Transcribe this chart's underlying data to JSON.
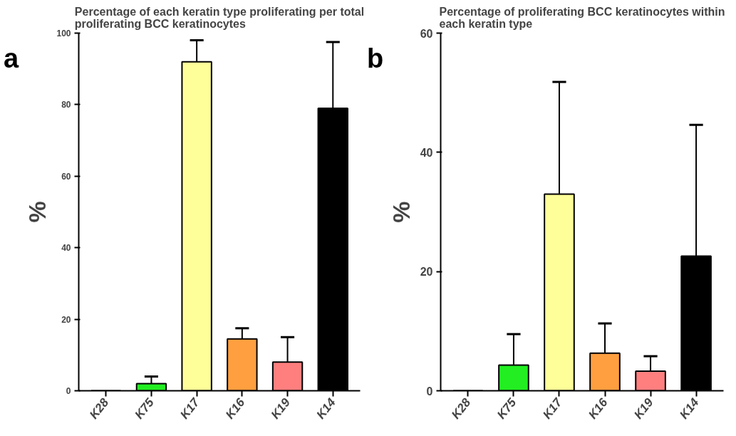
{
  "chart_data": [
    {
      "type": "bar",
      "title": "Percentage of each keratin type proliferating per total proliferating BCC keratinocytes",
      "ylabel": "%",
      "annotations": [
        "a"
      ],
      "categories": [
        "K28",
        "K75",
        "K17",
        "K16",
        "K19",
        "K14"
      ],
      "values": [
        0,
        2,
        92,
        14.5,
        8,
        79
      ],
      "errors": [
        null,
        [
          2,
          4
        ],
        [
          92,
          98
        ],
        [
          14.5,
          17.5
        ],
        [
          8,
          15
        ],
        [
          79,
          97.5
        ]
      ],
      "colors": [
        "#ffffff",
        "#22ee22",
        "#ffff99",
        "#ff9f3f",
        "#ff7f7f",
        "#000000"
      ],
      "ylim": [
        0,
        100
      ],
      "yticks": [
        0,
        20,
        40,
        60,
        80,
        100
      ],
      "grid": false
    },
    {
      "type": "bar",
      "title": "Percentage of proliferating BCC keratinocytes within each keratin type",
      "ylabel": "%",
      "annotations": [
        "b"
      ],
      "categories": [
        "K28",
        "K75",
        "K17",
        "K16",
        "K19",
        "K14"
      ],
      "values": [
        0,
        4.3,
        33,
        6.3,
        3.3,
        22.6
      ],
      "errors": [
        null,
        [
          4.3,
          9.5
        ],
        [
          33,
          51.8
        ],
        [
          6.3,
          11.3
        ],
        [
          3.3,
          5.8
        ],
        [
          22.6,
          44.6
        ]
      ],
      "colors": [
        "#ffffff",
        "#22ee22",
        "#ffff99",
        "#ff9f3f",
        "#ff7f7f",
        "#000000"
      ],
      "ylim": [
        0,
        60
      ],
      "yticks": [
        0,
        20,
        40,
        60
      ],
      "grid": false
    }
  ]
}
